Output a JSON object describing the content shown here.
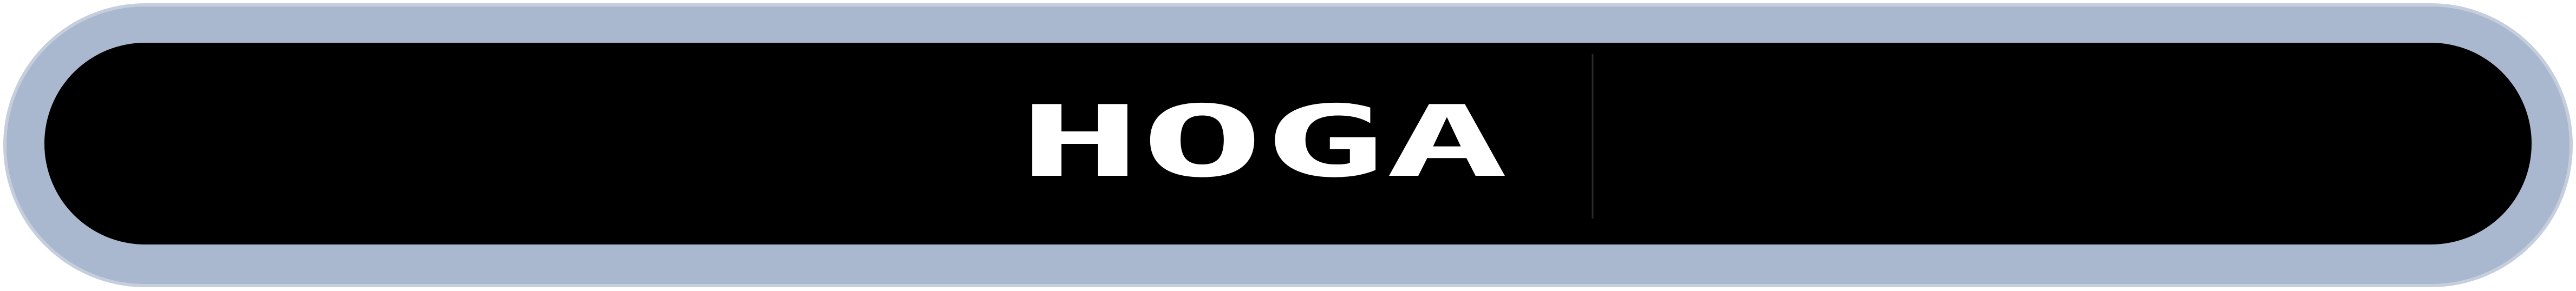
{
  "logo": {
    "text": "HOGA"
  }
}
